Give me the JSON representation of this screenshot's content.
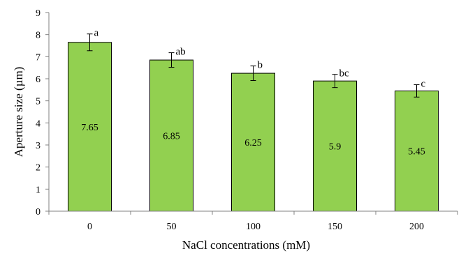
{
  "chart_data": {
    "type": "bar",
    "categories": [
      "0",
      "50",
      "100",
      "150",
      "200"
    ],
    "values": [
      7.65,
      6.85,
      6.25,
      5.9,
      5.45
    ],
    "error": [
      0.38,
      0.33,
      0.33,
      0.3,
      0.28
    ],
    "data_labels": [
      "7.65",
      "6.85",
      "6.25",
      "5.9",
      "5.45"
    ],
    "significance_labels": [
      "a",
      "ab",
      "b",
      "bc",
      "c"
    ],
    "xlabel": "NaCl concentrations  (mM)",
    "ylabel": "Aperture size  (µm)",
    "ylim": [
      0,
      9
    ],
    "yticks": [
      0,
      1,
      2,
      3,
      4,
      5,
      6,
      7,
      8,
      9
    ],
    "grid": false,
    "legend": "none",
    "colors": {
      "bar_fill": "#92d050",
      "bar_stroke": "#000000",
      "axis": "#808080",
      "error_bar": "#000000"
    }
  }
}
